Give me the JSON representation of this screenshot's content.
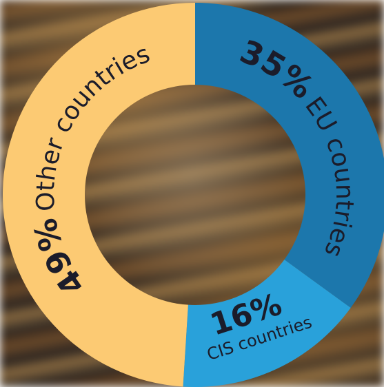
{
  "chart_data": {
    "type": "donut",
    "categories": [
      "EU countries",
      "CIS countries",
      "Other countries"
    ],
    "values": [
      35,
      16,
      49
    ],
    "value_labels": [
      "35%",
      "16%",
      "49%"
    ],
    "colors": [
      "#1c77ac",
      "#29a1da",
      "#fcca73"
    ]
  }
}
